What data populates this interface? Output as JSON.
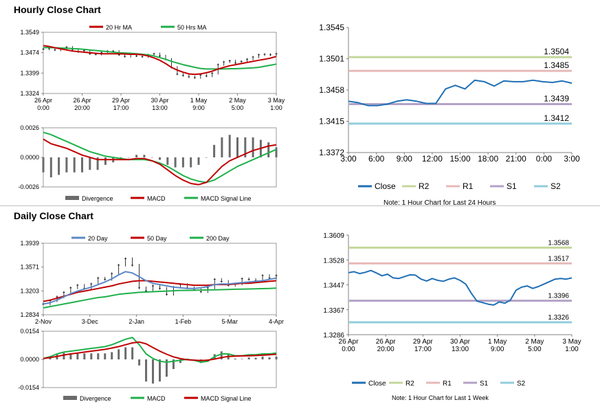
{
  "hourly": {
    "title": "Hourly Close Chart",
    "left_note": "",
    "right_note": "Note: 1 Hour Chart for Last 24 Hours"
  },
  "daily": {
    "title": "Daily Close Chart",
    "right_note": "Note: 1 Hour Chart for Last 1 Week"
  },
  "colors": {
    "close": "#1f6fb5",
    "r2": "#c4d79b",
    "r1": "#e6b9b8",
    "s1": "#b3a2c7",
    "s2": "#92cddc",
    "ma_short": "#c00000",
    "ma_long": "#1fb04a",
    "ma_20day": "#5b87c6",
    "divergence": "#6b6b6b"
  },
  "chart_data": [
    {
      "id": "hourly_price",
      "type": "line",
      "ylim": [
        1.3324,
        1.3549
      ],
      "yticks": [
        "1.3549",
        "1.3474",
        "1.3399",
        "1.3324"
      ],
      "xticks": [
        "26 Apr\n0:00",
        "26 Apr\n20:00",
        "29 Apr\n17:00",
        "30 Apr\n13:00",
        "1 May\n9:00",
        "2 May\n5:00",
        "3 May\n1:00"
      ],
      "legend": [
        "20 Hr MA",
        "50 Hrs MA"
      ],
      "series": [
        {
          "name": "Close",
          "values": [
            1.3487,
            1.349,
            1.3484,
            1.3488,
            1.3494,
            1.3486,
            1.3477,
            1.3482,
            1.347,
            1.3468,
            1.3474,
            1.348,
            1.3479,
            1.3466,
            1.346,
            1.3468,
            1.3462,
            1.3459,
            1.3466,
            1.347,
            1.3462,
            1.345,
            1.342,
            1.3395,
            1.339,
            1.3385,
            1.3382,
            1.3392,
            1.3388,
            1.3398,
            1.343,
            1.344,
            1.3444,
            1.3436,
            1.3442,
            1.345,
            1.3458,
            1.3466,
            1.3468,
            1.3466,
            1.347
          ]
        },
        {
          "name": "20 Hr MA",
          "values": [
            1.35,
            1.3497,
            1.3492,
            1.3488,
            1.3484,
            1.348,
            1.3478,
            1.3476,
            1.3474,
            1.3472,
            1.347,
            1.347,
            1.347,
            1.347,
            1.3469,
            1.3468,
            1.3468,
            1.3466,
            1.3462,
            1.3455,
            1.3446,
            1.3434,
            1.342,
            1.341,
            1.3402,
            1.3396,
            1.3394,
            1.3396,
            1.34,
            1.3406,
            1.3414,
            1.342,
            1.3426,
            1.343,
            1.3434,
            1.3438,
            1.3442,
            1.3446,
            1.345,
            1.3454,
            1.346
          ]
        },
        {
          "name": "50 Hrs MA",
          "values": [
            1.3493,
            1.3493,
            1.3492,
            1.3491,
            1.349,
            1.3489,
            1.3488,
            1.3486,
            1.3484,
            1.3482,
            1.348,
            1.3478,
            1.3476,
            1.3474,
            1.3473,
            1.3472,
            1.347,
            1.3468,
            1.3466,
            1.3462,
            1.3456,
            1.345,
            1.3442,
            1.3436,
            1.343,
            1.3425,
            1.342,
            1.3416,
            1.3414,
            1.3414,
            1.3414,
            1.3414,
            1.3415,
            1.3415,
            1.3416,
            1.3417,
            1.3418,
            1.342,
            1.3424,
            1.3428,
            1.3432
          ]
        }
      ]
    },
    {
      "id": "hourly_macd",
      "type": "line",
      "ylim": [
        -0.0026,
        0.0026
      ],
      "yticks": [
        "0.0026",
        "0.0000",
        "-0.0026"
      ],
      "legend": [
        "Divergence",
        "MACD",
        "MACD Signal Line"
      ],
      "series": [
        {
          "name": "MACD",
          "values": [
            0.0016,
            0.0012,
            0.001,
            0.0008,
            0.0005,
            0.0002,
            0.0,
            -0.0002,
            -0.0002,
            -0.0002,
            -0.0002,
            -0.0002,
            -0.0001,
            -0.0001,
            -0.0003,
            -0.0006,
            -0.0011,
            -0.0016,
            -0.002,
            -0.0023,
            -0.0024,
            -0.0022,
            -0.0015,
            -0.0008,
            -0.0003,
            0.0,
            0.0003,
            0.0006,
            0.0008,
            0.001,
            0.0011
          ]
        },
        {
          "name": "MACD Signal Line",
          "values": [
            0.0022,
            0.002,
            0.0017,
            0.0014,
            0.0011,
            0.0008,
            0.0005,
            0.0003,
            0.0001,
            0.0,
            -0.0001,
            -0.0002,
            -0.0002,
            -0.0002,
            -0.0003,
            -0.0005,
            -0.0008,
            -0.0012,
            -0.0016,
            -0.0019,
            -0.0021,
            -0.0022,
            -0.002,
            -0.0016,
            -0.0012,
            -0.0008,
            -0.0005,
            -0.0002,
            0.0001,
            0.0004,
            0.0007
          ]
        }
      ]
    },
    {
      "id": "hourly_pivot",
      "type": "line",
      "ylim": [
        1.3372,
        1.3545
      ],
      "yticks": [
        "1.3545",
        "1.3501",
        "1.3458",
        "1.3415",
        "1.3372"
      ],
      "xticks": [
        "3:00",
        "6:00",
        "9:00",
        "12:00",
        "15:00",
        "18:00",
        "21:00",
        "0:00",
        "3:00"
      ],
      "levels": {
        "R2": 1.3504,
        "R1": 1.3485,
        "S1": 1.3439,
        "S2": 1.3412
      },
      "level_labels": [
        "1.3504",
        "1.3485",
        "1.3439",
        "1.3412"
      ],
      "legend": [
        "Close",
        "R2",
        "R1",
        "S1",
        "S2"
      ],
      "series": [
        {
          "name": "Close",
          "values": [
            1.3443,
            1.3441,
            1.3437,
            1.3437,
            1.3439,
            1.3443,
            1.3445,
            1.3443,
            1.344,
            1.344,
            1.346,
            1.3465,
            1.346,
            1.3472,
            1.347,
            1.3464,
            1.3471,
            1.347,
            1.347,
            1.3472,
            1.347,
            1.3469,
            1.3471,
            1.3468
          ]
        }
      ]
    },
    {
      "id": "daily_price",
      "type": "line",
      "ylim": [
        1.2834,
        1.3939
      ],
      "yticks": [
        "1.3939",
        "1.3571",
        "1.3203",
        "1.2834"
      ],
      "xticks": [
        "2-Nov",
        "3-Dec",
        "2-Jan",
        "1-Feb",
        "5-Mar",
        "4-Apr"
      ],
      "legend": [
        "20 Day",
        "50 Day",
        "200 Day"
      ],
      "series": [
        {
          "name": "Close",
          "values": [
            1.3,
            1.305,
            1.311,
            1.318,
            1.325,
            1.329,
            1.324,
            1.331,
            1.34,
            1.338,
            1.347,
            1.36,
            1.37,
            1.36,
            1.325,
            1.32,
            1.328,
            1.324,
            1.315,
            1.326,
            1.33,
            1.325,
            1.322,
            1.319,
            1.325,
            1.338,
            1.335,
            1.329,
            1.331,
            1.339,
            1.338,
            1.336,
            1.344,
            1.34,
            1.344
          ]
        },
        {
          "name": "20 Day",
          "values": [
            1.3,
            1.302,
            1.306,
            1.311,
            1.316,
            1.32,
            1.323,
            1.326,
            1.33,
            1.334,
            1.339,
            1.345,
            1.35,
            1.348,
            1.342,
            1.336,
            1.332,
            1.33,
            1.328,
            1.326,
            1.325,
            1.324,
            1.324,
            1.325,
            1.327,
            1.33,
            1.331,
            1.331,
            1.332,
            1.333,
            1.334,
            1.335,
            1.336,
            1.338,
            1.34
          ]
        },
        {
          "name": "50 Day",
          "values": [
            1.304,
            1.306,
            1.309,
            1.312,
            1.315,
            1.318,
            1.32,
            1.322,
            1.324,
            1.326,
            1.328,
            1.331,
            1.333,
            1.335,
            1.336,
            1.336,
            1.335,
            1.334,
            1.333,
            1.332,
            1.331,
            1.33,
            1.329,
            1.329,
            1.329,
            1.33,
            1.33,
            1.33,
            1.331,
            1.332,
            1.332,
            1.333,
            1.334,
            1.335,
            1.336
          ]
        },
        {
          "name": "200 Day",
          "values": [
            1.294,
            1.296,
            1.298,
            1.3,
            1.302,
            1.304,
            1.306,
            1.308,
            1.31,
            1.311,
            1.313,
            1.315,
            1.316,
            1.317,
            1.318,
            1.3185,
            1.319,
            1.3195,
            1.32,
            1.3205,
            1.321,
            1.321,
            1.3212,
            1.3215,
            1.3218,
            1.322,
            1.3222,
            1.3225,
            1.3228,
            1.323,
            1.3232,
            1.3235,
            1.3238,
            1.324,
            1.3245
          ]
        }
      ]
    },
    {
      "id": "daily_macd",
      "type": "line",
      "ylim": [
        -0.0154,
        0.0154
      ],
      "yticks": [
        "0.0154",
        "0.0000",
        "-0.0154"
      ],
      "legend": [
        "Divergence",
        "MACD",
        "MACD Signal Line"
      ],
      "series": [
        {
          "name": "MACD",
          "values": [
            0.0005,
            0.0015,
            0.003,
            0.004,
            0.0045,
            0.005,
            0.0055,
            0.006,
            0.0065,
            0.007,
            0.008,
            0.0095,
            0.011,
            0.012,
            0.008,
            0.003,
            0.0005,
            -0.001,
            -0.0015,
            -0.001,
            -0.0005,
            0.0,
            -0.0005,
            -0.0015,
            -0.001,
            0.0015,
            0.003,
            0.003,
            0.002,
            0.002,
            0.0025,
            0.0025,
            0.003,
            0.003,
            0.0035
          ]
        },
        {
          "name": "MACD Signal Line",
          "values": [
            0.0005,
            0.001,
            0.0016,
            0.0024,
            0.003,
            0.0035,
            0.004,
            0.0045,
            0.005,
            0.0055,
            0.0062,
            0.007,
            0.008,
            0.009,
            0.0095,
            0.0085,
            0.0065,
            0.0045,
            0.0028,
            0.0014,
            0.0004,
            -0.0002,
            -0.0004,
            -0.0006,
            -0.0004,
            0.0002,
            0.001,
            0.0016,
            0.0018,
            0.0019,
            0.002,
            0.0021,
            0.0023,
            0.0025,
            0.0028
          ]
        }
      ]
    },
    {
      "id": "daily_pivot",
      "type": "line",
      "ylim": [
        1.3286,
        1.3609
      ],
      "yticks": [
        "1.3609",
        "1.3528",
        "1.3447",
        "1.3367",
        "1.3286"
      ],
      "xticks": [
        "26 Apr\n0:00",
        "26 Apr\n20:00",
        "29 Apr\n17:00",
        "30 Apr\n13:00",
        "1 May\n9:00",
        "2 May\n5:00",
        "3 May\n1:00"
      ],
      "levels": {
        "R2": 1.3568,
        "R1": 1.3517,
        "S1": 1.3396,
        "S2": 1.3326
      },
      "level_labels": [
        "1.3568",
        "1.3517",
        "1.3396",
        "1.3326"
      ],
      "legend": [
        "Close",
        "R2",
        "R1",
        "S1",
        "S2"
      ],
      "series": [
        {
          "name": "Close",
          "values": [
            1.3487,
            1.349,
            1.3484,
            1.3488,
            1.3494,
            1.3486,
            1.3477,
            1.3482,
            1.347,
            1.3468,
            1.3474,
            1.348,
            1.3479,
            1.3466,
            1.346,
            1.3468,
            1.3462,
            1.3459,
            1.3466,
            1.347,
            1.3462,
            1.345,
            1.342,
            1.3395,
            1.339,
            1.3385,
            1.3382,
            1.3392,
            1.3388,
            1.3398,
            1.343,
            1.344,
            1.3444,
            1.3436,
            1.3442,
            1.345,
            1.3458,
            1.3466,
            1.3468,
            1.3466,
            1.347
          ]
        }
      ]
    }
  ]
}
